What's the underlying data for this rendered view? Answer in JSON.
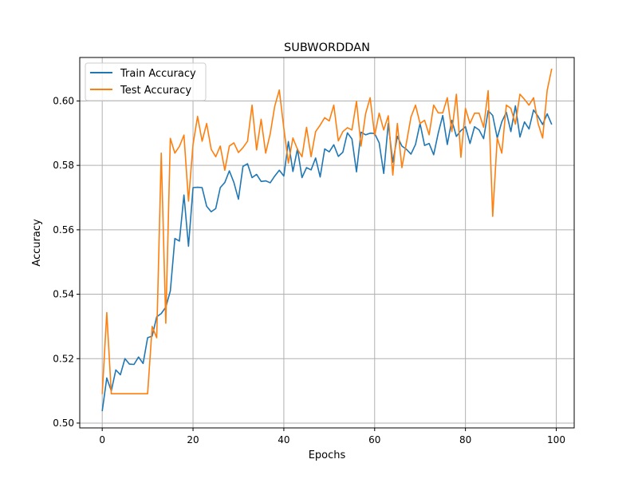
{
  "chart_data": {
    "type": "line",
    "title": "SUBWORDDAN",
    "xlabel": "Epochs",
    "ylabel": "Accuracy",
    "xlim": [
      -4.95,
      103.95
    ],
    "ylim": [
      0.4985,
      0.6135
    ],
    "xticks": [
      0,
      20,
      40,
      60,
      80,
      100
    ],
    "xtick_labels": [
      "0",
      "20",
      "40",
      "60",
      "80",
      "100"
    ],
    "yticks": [
      0.5,
      0.52,
      0.54,
      0.56,
      0.58,
      0.6
    ],
    "ytick_labels": [
      "0.50",
      "0.52",
      "0.54",
      "0.56",
      "0.58",
      "0.60"
    ],
    "grid": true,
    "legend_position": "upper-left",
    "x": [
      0,
      1,
      2,
      3,
      4,
      5,
      6,
      7,
      8,
      9,
      10,
      11,
      12,
      13,
      14,
      15,
      16,
      17,
      18,
      19,
      20,
      21,
      22,
      23,
      24,
      25,
      26,
      27,
      28,
      29,
      30,
      31,
      32,
      33,
      34,
      35,
      36,
      37,
      38,
      39,
      40,
      41,
      42,
      43,
      44,
      45,
      46,
      47,
      48,
      49,
      50,
      51,
      52,
      53,
      54,
      55,
      56,
      57,
      58,
      59,
      60,
      61,
      62,
      63,
      64,
      65,
      66,
      67,
      68,
      69,
      70,
      71,
      72,
      73,
      74,
      75,
      76,
      77,
      78,
      79,
      80,
      81,
      82,
      83,
      84,
      85,
      86,
      87,
      88,
      89,
      90,
      91,
      92,
      93,
      94,
      95,
      96,
      97,
      98,
      99
    ],
    "series": [
      {
        "name": "Train Accuracy",
        "color": "#1f77b4",
        "values": [
          0.5037,
          0.514,
          0.51,
          0.5165,
          0.515,
          0.52,
          0.5183,
          0.5182,
          0.5205,
          0.5185,
          0.5265,
          0.527,
          0.533,
          0.534,
          0.536,
          0.541,
          0.5573,
          0.5565,
          0.5708,
          0.5549,
          0.5731,
          0.5732,
          0.5731,
          0.5673,
          0.5656,
          0.5666,
          0.5731,
          0.5747,
          0.5783,
          0.5747,
          0.5695,
          0.5797,
          0.5805,
          0.5762,
          0.5772,
          0.575,
          0.5752,
          0.5746,
          0.5767,
          0.5785,
          0.5767,
          0.5874,
          0.5781,
          0.5851,
          0.5762,
          0.5793,
          0.5786,
          0.5823,
          0.5764,
          0.5851,
          0.5842,
          0.5864,
          0.5828,
          0.5841,
          0.5901,
          0.5882,
          0.578,
          0.5903,
          0.5895,
          0.59,
          0.5899,
          0.587,
          0.5775,
          0.593,
          0.581,
          0.589,
          0.586,
          0.585,
          0.5835,
          0.5865,
          0.593,
          0.5862,
          0.5868,
          0.5833,
          0.59,
          0.5955,
          0.5865,
          0.594,
          0.589,
          0.5908,
          0.592,
          0.5868,
          0.592,
          0.591,
          0.5883,
          0.597,
          0.5955,
          0.5885,
          0.5935,
          0.5965,
          0.5905,
          0.5985,
          0.5888,
          0.5935,
          0.5913,
          0.5972,
          0.5952,
          0.5927,
          0.596,
          0.5927
        ]
      },
      {
        "name": "Test Accuracy",
        "color": "#ff7f0e",
        "values": [
          0.509,
          0.5343,
          0.5091,
          0.5091,
          0.5091,
          0.5091,
          0.5091,
          0.5091,
          0.5091,
          0.5091,
          0.5091,
          0.53,
          0.5265,
          0.5838,
          0.531,
          0.5884,
          0.5838,
          0.5859,
          0.5894,
          0.5689,
          0.5865,
          0.5952,
          0.5875,
          0.593,
          0.585,
          0.5827,
          0.586,
          0.5785,
          0.586,
          0.587,
          0.584,
          0.5855,
          0.5875,
          0.5987,
          0.5848,
          0.5943,
          0.5838,
          0.5898,
          0.5984,
          0.6034,
          0.5915,
          0.5807,
          0.5885,
          0.585,
          0.5827,
          0.5918,
          0.5827,
          0.5905,
          0.5925,
          0.5948,
          0.5938,
          0.5987,
          0.5876,
          0.5905,
          0.5917,
          0.591,
          0.5999,
          0.586,
          0.596,
          0.601,
          0.5893,
          0.5962,
          0.591,
          0.5954,
          0.577,
          0.593,
          0.5793,
          0.587,
          0.595,
          0.5987,
          0.593,
          0.594,
          0.5895,
          0.5987,
          0.5963,
          0.5963,
          0.601,
          0.5905,
          0.6021,
          0.5825,
          0.5977,
          0.593,
          0.5962,
          0.5962,
          0.5918,
          0.6032,
          0.5642,
          0.5885,
          0.5838,
          0.5987,
          0.5977,
          0.5928,
          0.6021,
          0.6005,
          0.5987,
          0.601,
          0.593,
          0.5885,
          0.6033,
          0.61
        ]
      }
    ]
  }
}
